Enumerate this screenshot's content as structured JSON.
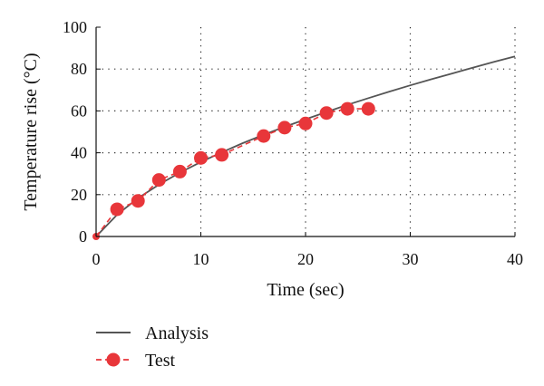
{
  "chart_data": {
    "type": "line",
    "title": "",
    "xlabel": "Time (sec)",
    "ylabel": "Temperature rise (°C)",
    "xlim": [
      0,
      40
    ],
    "ylim": [
      0,
      100
    ],
    "x_ticks": [
      0,
      10,
      20,
      30,
      40
    ],
    "y_ticks": [
      0,
      20,
      40,
      60,
      80,
      100
    ],
    "grid": "dotted",
    "legend_position": "bottom-left",
    "series": [
      {
        "name": "Analysis",
        "style": "solid-line",
        "color": "#555555",
        "x": [
          0,
          2,
          4,
          6,
          8,
          10,
          12,
          14,
          16,
          18,
          20,
          22,
          24,
          26,
          28,
          30,
          32,
          34,
          36,
          38,
          40
        ],
        "y": [
          0,
          10.4,
          18.3,
          24.8,
          30.5,
          35.6,
          40.2,
          44.6,
          48.6,
          52.4,
          56.0,
          59.5,
          62.9,
          66.1,
          69.2,
          72.2,
          75.1,
          77.9,
          80.7,
          83.4,
          86.0
        ]
      },
      {
        "name": "Test",
        "style": "dashed-line-markers",
        "color": "#e8363a",
        "x": [
          0,
          2,
          4,
          6,
          8,
          10,
          12,
          16,
          18,
          20,
          22,
          24,
          26
        ],
        "y": [
          0,
          13,
          17,
          27,
          31,
          37.5,
          39,
          48,
          52,
          54,
          59,
          61,
          61
        ]
      }
    ]
  }
}
